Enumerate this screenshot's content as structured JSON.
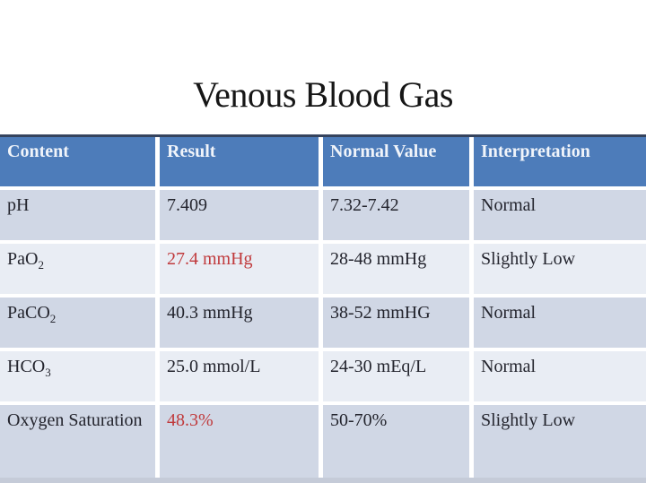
{
  "title": "Venous Blood Gas",
  "colors": {
    "header-bg": "#4d7cba",
    "header-text": "#f0f4fa",
    "band-dark": "#d0d7e5",
    "band-light": "#e9edf4",
    "alert-red": "#c03a3c",
    "text-dark": "#23242d",
    "table-top-border": "#35435d",
    "bottom-strip": "#c5cbd8"
  },
  "table": {
    "headers": [
      "Content",
      "Result",
      "Normal Value",
      "Interpretation"
    ],
    "rows": [
      {
        "content": {
          "base": "pH",
          "sub": ""
        },
        "result": {
          "text": "7.409",
          "highlight": false
        },
        "normal": "7.32-7.42",
        "interpretation": "Normal"
      },
      {
        "content": {
          "base": "PaO",
          "sub": "2"
        },
        "result": {
          "text": "27.4 mmHg",
          "highlight": true
        },
        "normal": "28-48 mmHg",
        "interpretation": "Slightly Low"
      },
      {
        "content": {
          "base": "PaCO",
          "sub": "2"
        },
        "result": {
          "text": "40.3 mmHg",
          "highlight": false
        },
        "normal": "38-52 mmHG",
        "interpretation": "Normal"
      },
      {
        "content": {
          "base": "HCO",
          "sub": "3"
        },
        "result": {
          "text": "25.0 mmol/L",
          "highlight": false
        },
        "normal": "24-30 mEq/L",
        "interpretation": "Normal"
      },
      {
        "content": {
          "base": "Oxygen Saturation",
          "sub": ""
        },
        "result": {
          "text": "48.3%",
          "highlight": true
        },
        "normal": "50-70%",
        "interpretation": "Slightly Low"
      }
    ]
  }
}
